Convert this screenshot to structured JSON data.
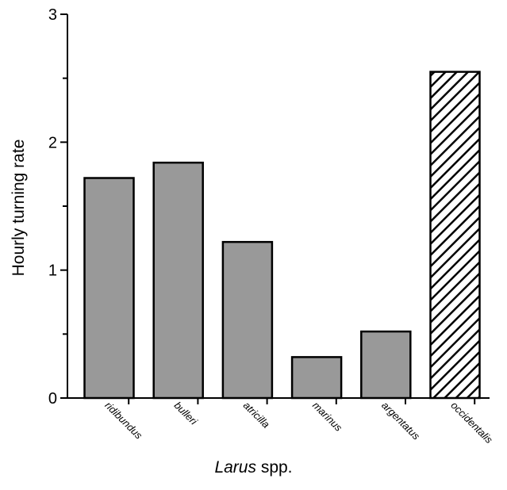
{
  "chart_data": {
    "type": "bar",
    "categories": [
      "ridibundus",
      "bulleri",
      "atricilla",
      "marinus",
      "argentatus",
      "occidentalis"
    ],
    "values": [
      1.72,
      1.84,
      1.22,
      0.32,
      0.52,
      2.55
    ],
    "patterns": [
      "solid",
      "solid",
      "solid",
      "solid",
      "solid",
      "hatched"
    ],
    "bar_color": "#999999",
    "hatch_color": "#000000",
    "title": "",
    "xlabel_genus": "Larus",
    "xlabel_suffix": "spp.",
    "ylabel": "Hourly turning rate",
    "ylim": [
      0,
      3
    ],
    "y_major_ticks": [
      0,
      1,
      2,
      3
    ],
    "y_minor_ticks": [
      0.5,
      1.5,
      2.5
    ],
    "grid": false
  }
}
